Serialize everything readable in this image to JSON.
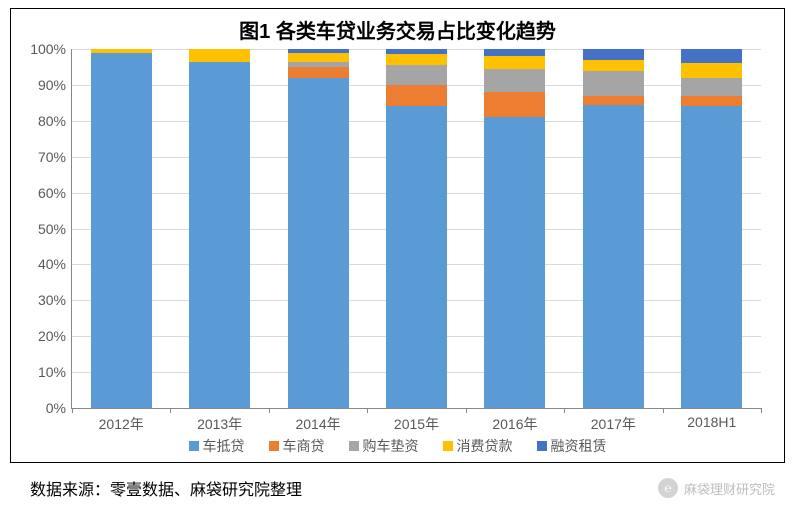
{
  "title": {
    "text": "图1  各类车贷业务交易占比变化趋势",
    "fontsize": 20
  },
  "chart": {
    "type": "stacked-bar-100",
    "background_color": "#ffffff",
    "grid_color": "#d9d9d9",
    "axis_color": "#888888",
    "text_color": "#595959",
    "label_fontsize": 14,
    "ylim": [
      0,
      100
    ],
    "ytick_step": 10,
    "y_suffix": "%",
    "bar_width_ratio": 0.62,
    "categories": [
      "2012年",
      "2013年",
      "2014年",
      "2015年",
      "2016年",
      "2017年",
      "2018H1"
    ],
    "series": [
      {
        "name": "车抵贷",
        "color": "#5b9bd5",
        "values": [
          99.0,
          96.5,
          92.0,
          84.0,
          81.0,
          84.5,
          84.0
        ]
      },
      {
        "name": "车商贷",
        "color": "#ed7d31",
        "values": [
          0.0,
          0.0,
          3.0,
          6.0,
          7.0,
          2.5,
          3.0
        ]
      },
      {
        "name": "购车垫资",
        "color": "#a5a5a5",
        "values": [
          0.0,
          0.0,
          1.5,
          5.5,
          6.5,
          7.0,
          5.0
        ]
      },
      {
        "name": "消费贷款",
        "color": "#ffc000",
        "values": [
          1.0,
          3.5,
          2.5,
          3.0,
          3.5,
          3.0,
          4.0
        ]
      },
      {
        "name": "融资租赁",
        "color": "#4472c4",
        "values": [
          0.0,
          0.0,
          1.0,
          1.5,
          2.0,
          3.0,
          4.0
        ]
      }
    ],
    "legend_fontsize": 14
  },
  "source": {
    "text": "数据来源：零壹数据、麻袋研究院整理",
    "fontsize": 16
  },
  "watermark": {
    "text": "麻袋理财研究院",
    "icon_glyph": "℮",
    "fontsize": 13
  }
}
